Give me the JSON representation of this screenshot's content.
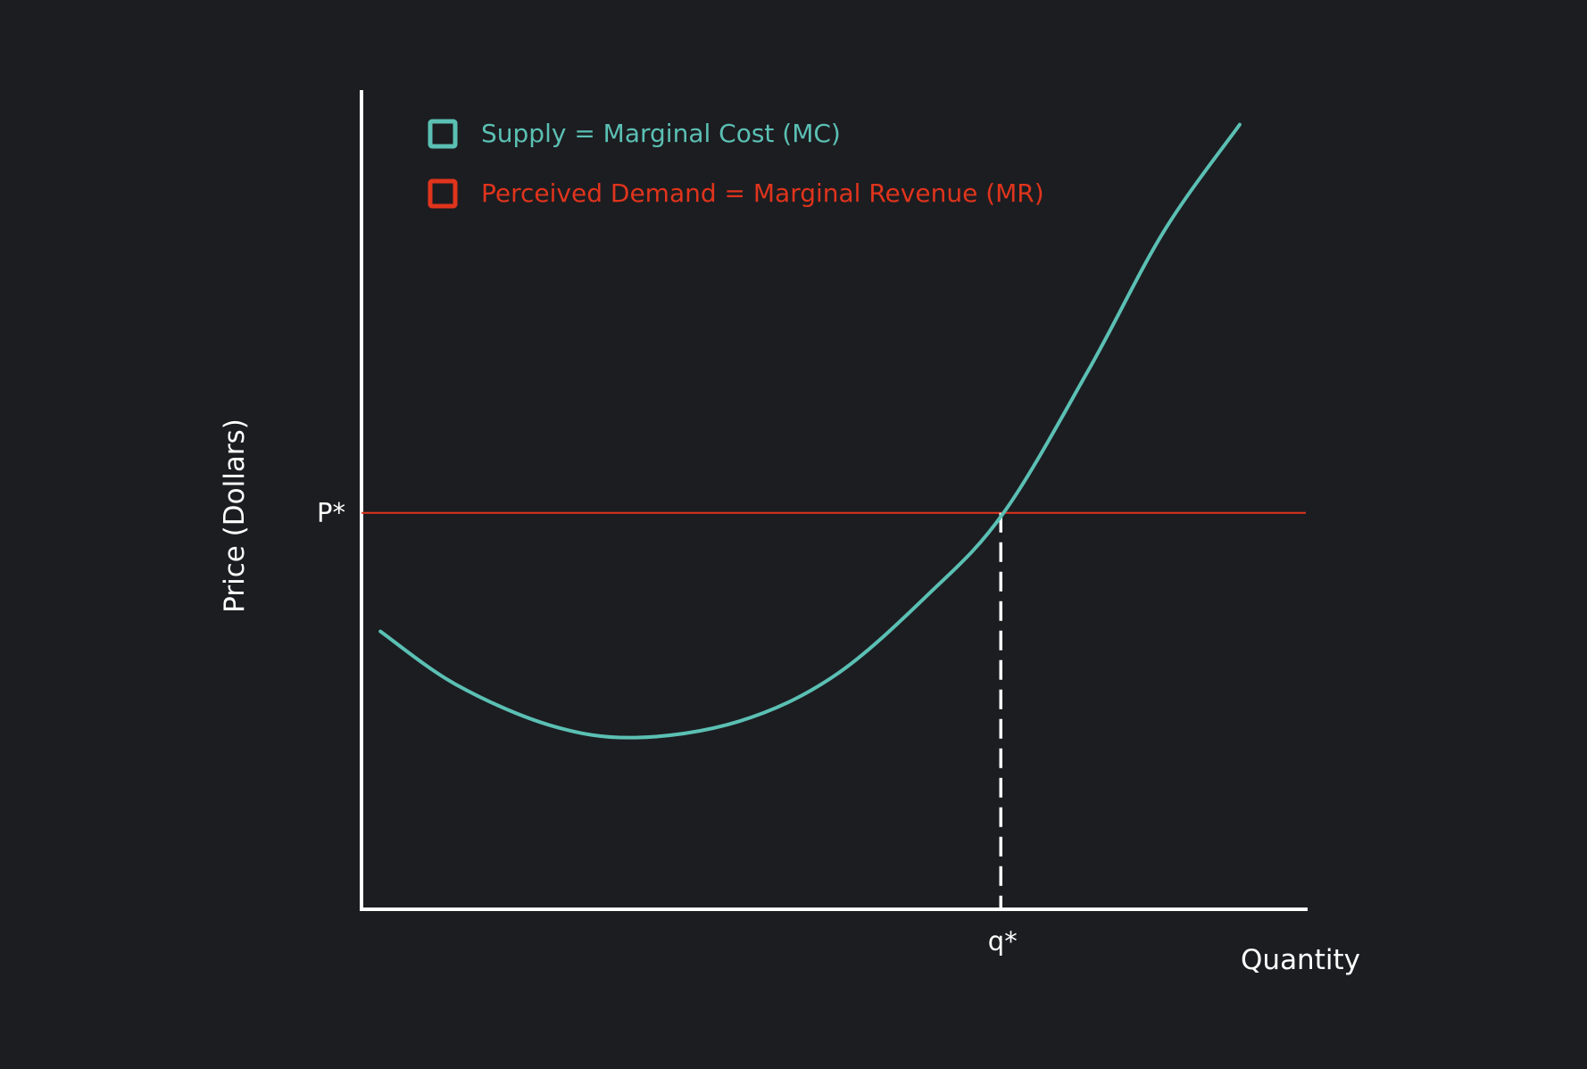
{
  "colors": {
    "background": "#1c1d21",
    "axis": "#ffffff",
    "mc": "#5bc0b4",
    "mr": "#e0341c"
  },
  "chart_data": {
    "type": "line",
    "title": "",
    "xlabel": "Quantity",
    "ylabel": "Price (Dollars)",
    "xlim": [
      0,
      10
    ],
    "ylim": [
      0,
      10
    ],
    "grid": false,
    "legend_position": "top-left",
    "legend": [
      {
        "label": "Supply =  Marginal Cost (MC)",
        "color": "#5bc0b4"
      },
      {
        "label": "Perceived Demand = Marginal Revenue (MR)",
        "color": "#e0341c"
      }
    ],
    "series": [
      {
        "name": "Supply =  Marginal Cost (MC)",
        "color": "#5bc0b4",
        "x": [
          0.2,
          1.0,
          2.0,
          2.9,
          4.0,
          5.0,
          6.0,
          6.8,
          7.7,
          8.5,
          9.3
        ],
        "y": [
          3.4,
          2.75,
          2.25,
          2.1,
          2.3,
          2.85,
          3.85,
          4.85,
          6.6,
          8.3,
          9.6
        ]
      },
      {
        "name": "Perceived Demand = Marginal Revenue (MR)",
        "color": "#e0341c",
        "x": [
          0,
          10
        ],
        "y": [
          4.85,
          4.85
        ]
      }
    ],
    "markers": {
      "p_star": {
        "label": "P*",
        "value": 4.85
      },
      "q_star": {
        "label": "q*",
        "value": 6.77
      }
    }
  }
}
